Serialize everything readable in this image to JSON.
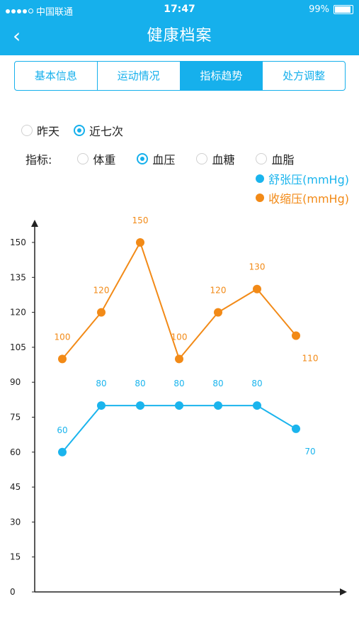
{
  "status": {
    "carrier": "中国联通",
    "time": "17:47",
    "battery": "99%"
  },
  "header": {
    "title": "健康档案",
    "back_icon": "‹"
  },
  "tabs": [
    {
      "label": "基本信息",
      "active": false
    },
    {
      "label": "运动情况",
      "active": false
    },
    {
      "label": "指标趋势",
      "active": true
    },
    {
      "label": "处方调整",
      "active": false
    }
  ],
  "period": {
    "options": [
      "昨天",
      "近七次"
    ],
    "selected": "近七次"
  },
  "metrics": {
    "label": "指标:",
    "options": [
      "体重",
      "血压",
      "血糖",
      "血脂"
    ],
    "selected": "血压"
  },
  "legend": [
    {
      "label": "舒张压(mmHg)",
      "color": "#1ab4ed"
    },
    {
      "label": "收缩压(mmHg)",
      "color": "#f28a17"
    }
  ],
  "chart_data": {
    "type": "line",
    "ylim": [
      0,
      150
    ],
    "yticks": [
      "0",
      "15",
      "30",
      "45",
      "60",
      "75",
      "90",
      "105",
      "120",
      "135",
      "150"
    ],
    "x": [
      1,
      2,
      3,
      4,
      5,
      6,
      7
    ],
    "series": [
      {
        "name": "收缩压(mmHg)",
        "color": "#f28a17",
        "values": [
          100,
          120,
          150,
          100,
          120,
          130,
          110
        ]
      },
      {
        "name": "舒张压(mmHg)",
        "color": "#1ab4ed",
        "values": [
          60,
          80,
          80,
          80,
          80,
          80,
          70
        ]
      }
    ]
  }
}
